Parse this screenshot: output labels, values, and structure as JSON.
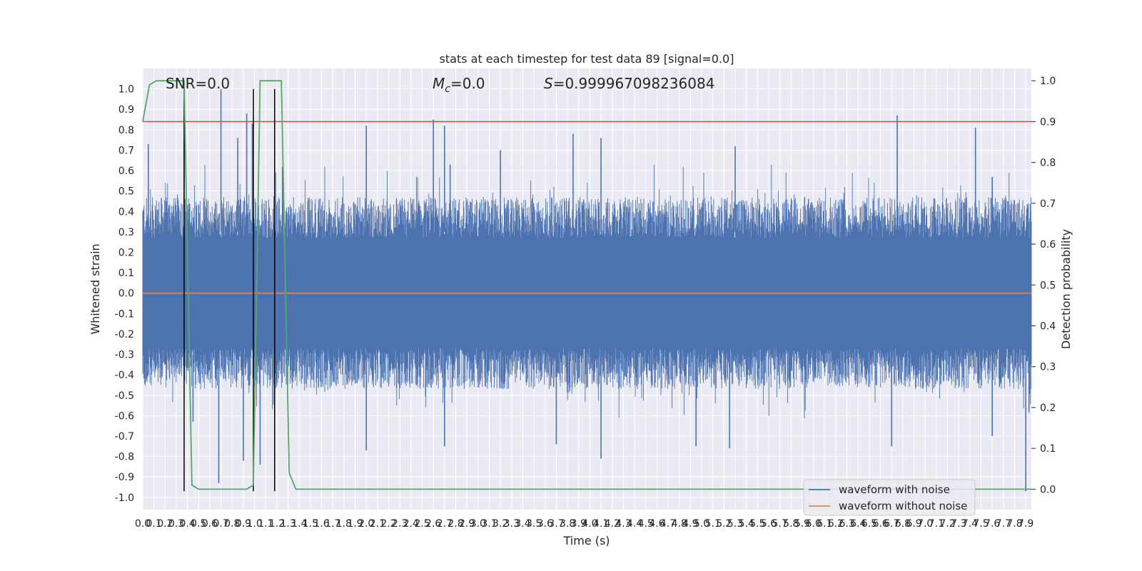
{
  "chart_data": {
    "type": "line",
    "title": "stats at each timestep for test data 89 [signal=0.0]",
    "xlabel": "Time (s)",
    "ylabel_left": "Whitened strain",
    "ylabel_right": "Detection probability",
    "annotations": {
      "snr": "SNR=0.0",
      "mc_symbol": "M",
      "mc_sub": "c",
      "mc_value": "=0.0",
      "s_symbol": "S",
      "s_value": "=0.999967098236084"
    },
    "xlim": [
      0.0,
      7.95
    ],
    "ylim_left": [
      -1.06,
      1.1
    ],
    "ylim_right": [
      -0.05,
      1.03
    ],
    "x_ticks": [
      0.0,
      0.1,
      0.2,
      0.3,
      0.4,
      0.5,
      0.6,
      0.7,
      0.8,
      0.9,
      1.0,
      1.1,
      1.2,
      1.3,
      1.4,
      1.5,
      1.6,
      1.7,
      1.8,
      1.9,
      2.0,
      2.1,
      2.2,
      2.3,
      2.4,
      2.5,
      2.6,
      2.7,
      2.8,
      2.9,
      3.0,
      3.1,
      3.2,
      3.3,
      3.4,
      3.5,
      3.6,
      3.7,
      3.8,
      3.9,
      4.0,
      4.1,
      4.2,
      4.3,
      4.4,
      4.5,
      4.6,
      4.7,
      4.8,
      4.9,
      5.0,
      5.1,
      5.2,
      5.3,
      5.4,
      5.5,
      5.6,
      5.7,
      5.8,
      5.9,
      6.0,
      6.1,
      6.2,
      6.3,
      6.4,
      6.5,
      6.6,
      6.7,
      6.8,
      6.9,
      7.0,
      7.1,
      7.2,
      7.3,
      7.4,
      7.5,
      7.6,
      7.7,
      7.8,
      7.9
    ],
    "y_ticks_left": [
      -1.0,
      -0.9,
      -0.8,
      -0.7,
      -0.6,
      -0.5,
      -0.4,
      -0.3,
      -0.2,
      -0.1,
      0.0,
      0.1,
      0.2,
      0.3,
      0.4,
      0.5,
      0.6,
      0.7,
      0.8,
      0.9,
      1.0
    ],
    "y_ticks_right": [
      0.0,
      0.1,
      0.2,
      0.3,
      0.4,
      0.5,
      0.6,
      0.7,
      0.8,
      0.9,
      1.0
    ],
    "grid": true,
    "legend_position": "lower-right",
    "series": [
      {
        "name": "waveform with noise",
        "color": "#4c72b0",
        "axis": "left",
        "kind": "dense noise trace, envelope approx +/-0.4 with spikes",
        "spikes_x": [
          0.05,
          0.37,
          0.7,
          0.85,
          0.93,
          0.98,
          1.25,
          2.0,
          2.6,
          2.7,
          2.75,
          3.2,
          3.85,
          4.1,
          5.3,
          6.75,
          7.45,
          7.6
        ],
        "spikes_y": [
          0.73,
          0.75,
          1.0,
          0.76,
          0.88,
          0.83,
          0.62,
          0.82,
          0.85,
          0.82,
          0.63,
          0.7,
          0.78,
          0.76,
          0.72,
          0.87,
          0.81,
          0.57
        ],
        "dips_x": [
          0.45,
          0.68,
          0.9,
          1.05,
          2.0,
          2.7,
          3.7,
          4.1,
          4.95,
          5.25,
          6.7,
          7.6,
          7.9
        ],
        "dips_y": [
          -0.63,
          -0.93,
          -0.82,
          -0.84,
          -0.77,
          -0.75,
          -0.74,
          -0.81,
          -0.75,
          -0.76,
          -0.75,
          -0.7,
          -0.97
        ]
      },
      {
        "name": "waveform without noise",
        "color": "#dd8452",
        "axis": "left",
        "x": [
          0.0,
          7.95
        ],
        "y": [
          0.0,
          0.0
        ]
      },
      {
        "name": "",
        "color": "#55a868",
        "axis": "right",
        "x": [
          0.0,
          0.06,
          0.12,
          0.18,
          0.24,
          0.3,
          0.37,
          0.44,
          0.5,
          0.56,
          0.62,
          0.68,
          0.75,
          0.81,
          0.87,
          0.93,
          0.99,
          1.05,
          1.11,
          1.17,
          1.24,
          1.31,
          1.37,
          1.43,
          7.95
        ],
        "y": [
          0.9,
          0.99,
          1.0,
          1.0,
          1.0,
          1.0,
          1.0,
          0.01,
          0.0,
          0.0,
          0.0,
          0.0,
          0.0,
          0.0,
          0.0,
          0.0,
          0.01,
          1.0,
          1.0,
          1.0,
          1.0,
          0.04,
          0.0,
          0.0,
          0.0
        ]
      }
    ],
    "threshold_line": {
      "axis": "right",
      "value": 0.9,
      "color": "#c44e52"
    },
    "vertical_markers": {
      "x": [
        0.37,
        0.99,
        1.18
      ],
      "color": "#000000"
    },
    "legend": [
      {
        "label": "waveform with noise",
        "color": "#4c72b0"
      },
      {
        "label": "waveform without noise",
        "color": "#dd8452"
      }
    ],
    "colors": {
      "plot_background": "#eaeaf2",
      "grid": "#ffffff"
    }
  }
}
